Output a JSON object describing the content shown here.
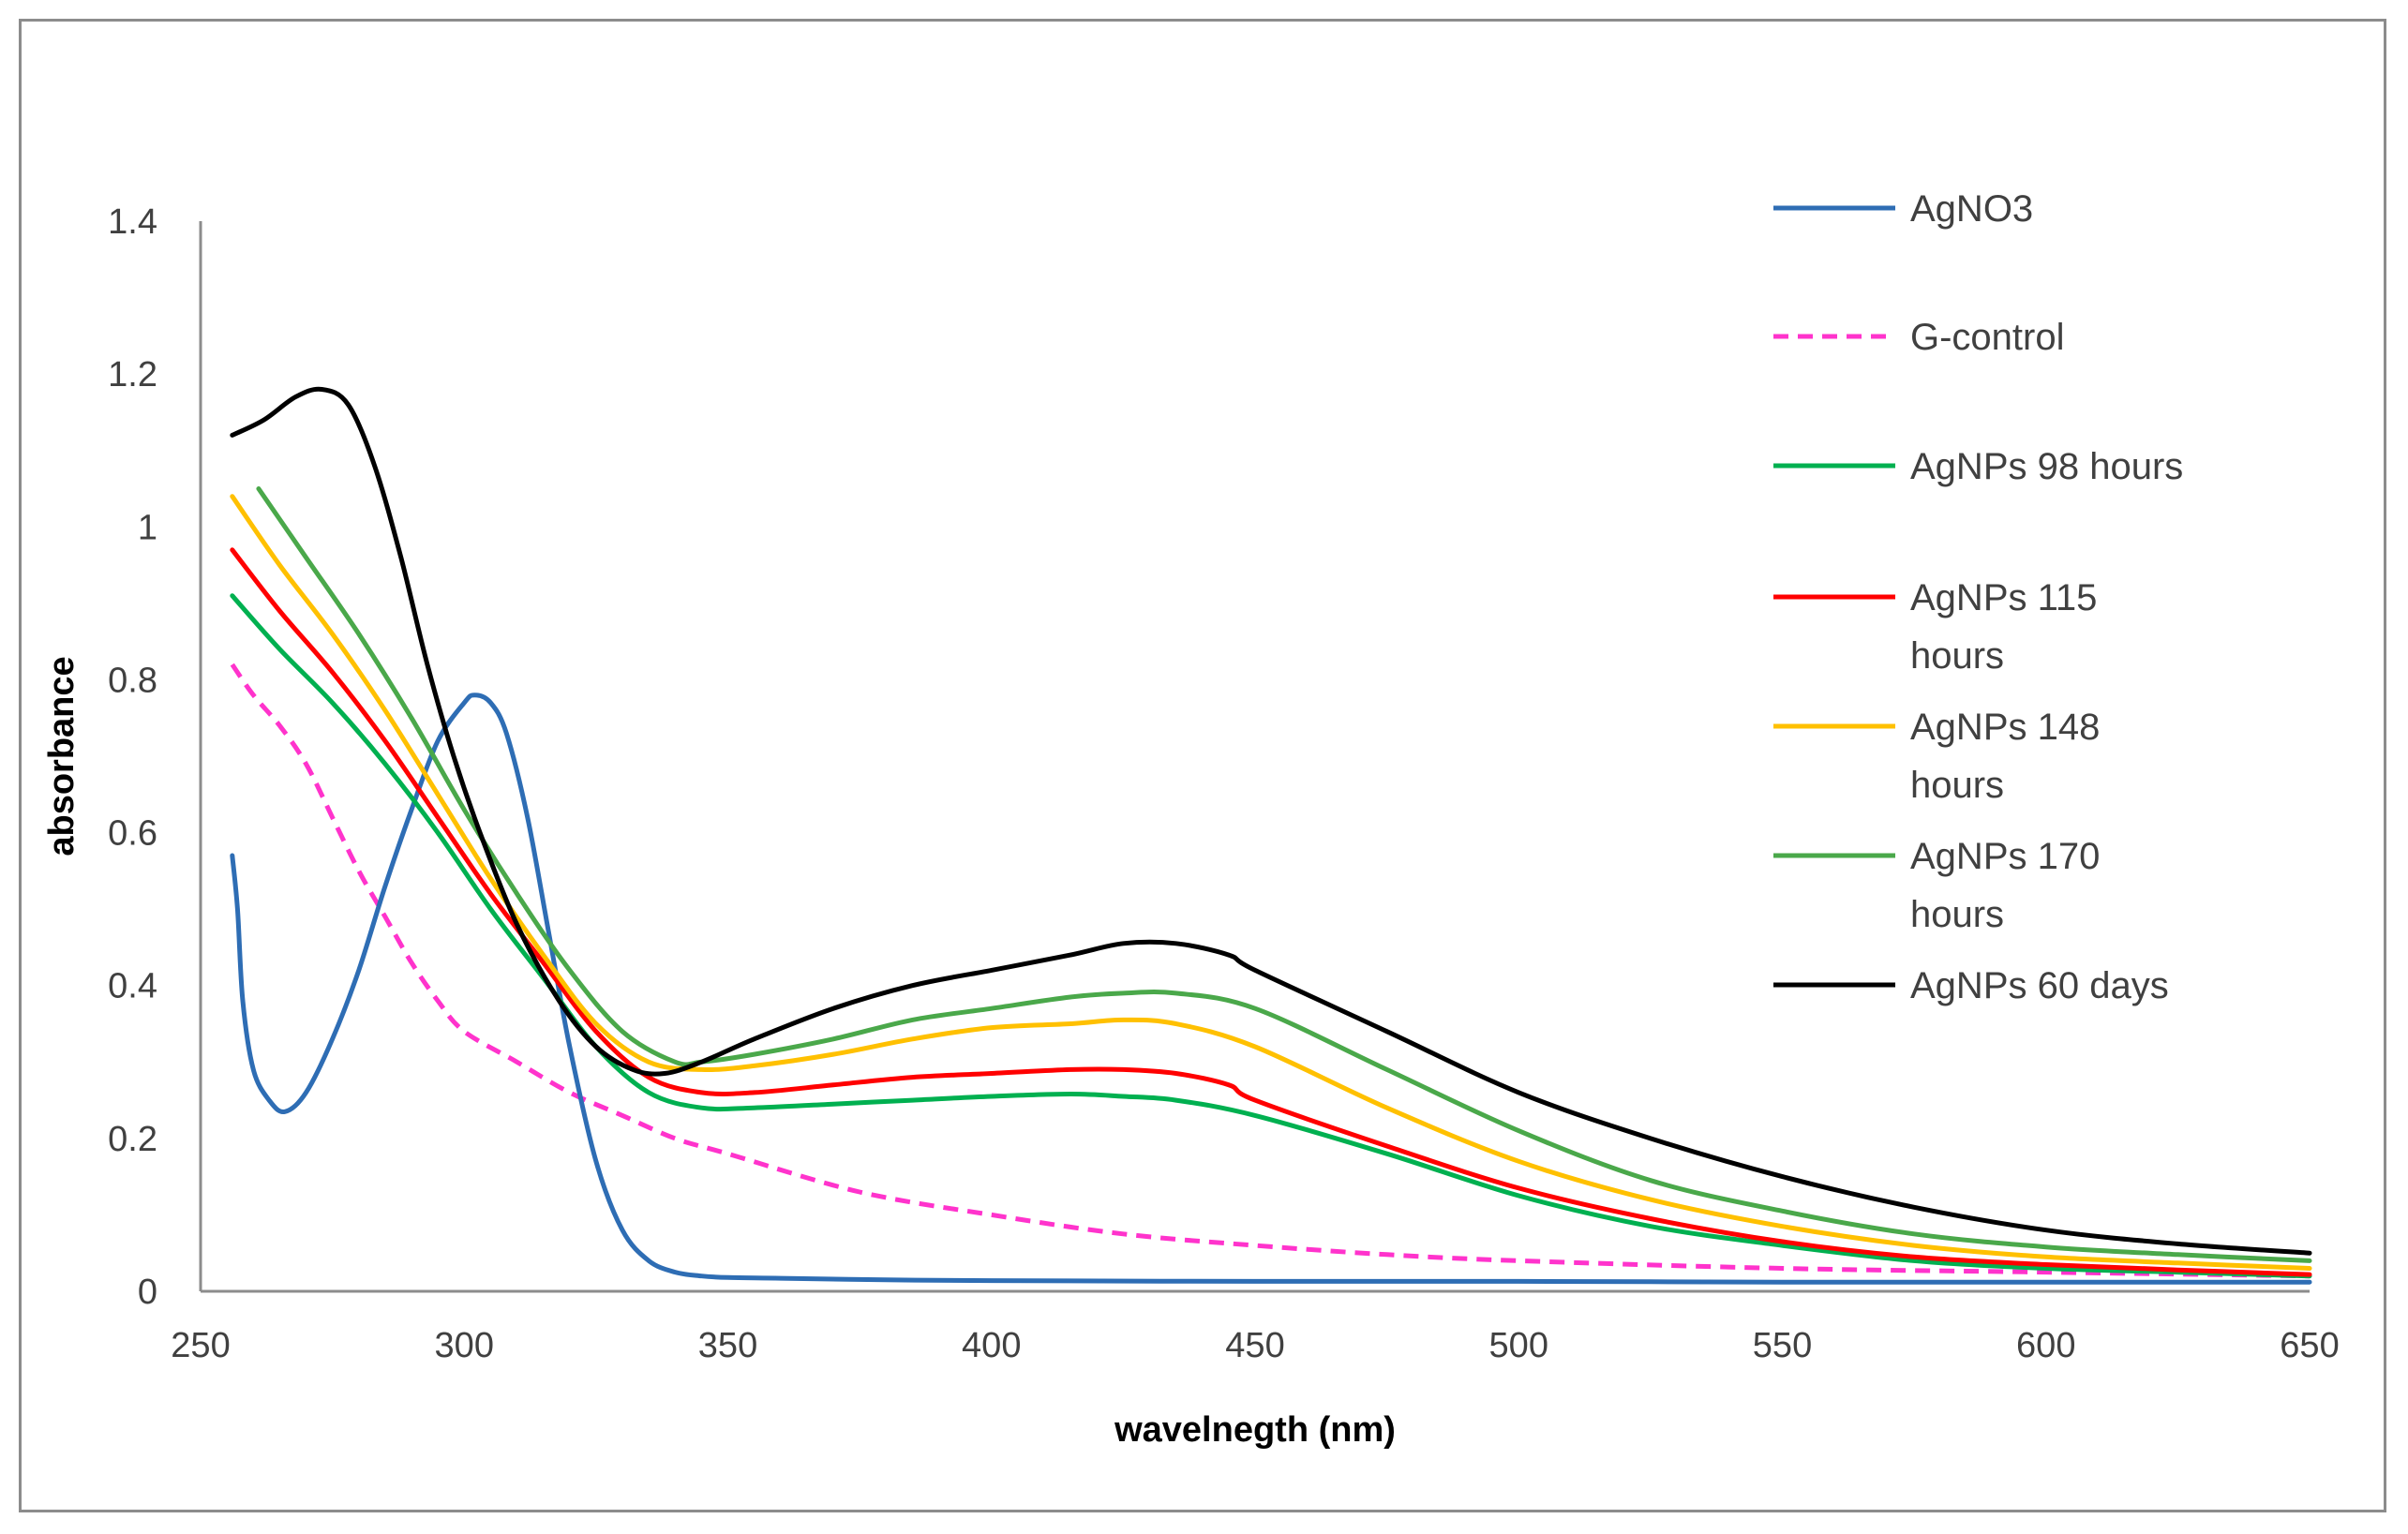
{
  "chart_data": {
    "type": "line",
    "title": "",
    "xlabel": "wavelnegth (nm)",
    "ylabel": "absorbance",
    "xlim": [
      250,
      650
    ],
    "ylim": [
      0,
      1.4
    ],
    "x_ticks": [
      "250",
      "300",
      "350",
      "400",
      "450",
      "500",
      "550",
      "600",
      "650"
    ],
    "y_ticks": [
      "0",
      "0.2",
      "0.4",
      "0.6",
      "0.8",
      "1",
      "1.2",
      "1.4"
    ],
    "grid": false,
    "legend_position": "right",
    "series": [
      {
        "name": "AgNO3",
        "color": "#2e6db4",
        "dashed": false,
        "x": [
          256,
          257,
          258,
          260,
          263,
          266,
          270,
          275,
          280,
          285,
          290,
          295,
          300,
          302,
          305,
          308,
          312,
          316,
          320,
          325,
          330,
          335,
          340,
          345,
          350,
          360,
          380,
          400,
          450,
          500,
          550,
          600,
          650
        ],
        "y": [
          0.57,
          0.5,
          0.38,
          0.29,
          0.25,
          0.235,
          0.26,
          0.33,
          0.42,
          0.53,
          0.63,
          0.72,
          0.77,
          0.78,
          0.77,
          0.73,
          0.62,
          0.47,
          0.32,
          0.17,
          0.08,
          0.04,
          0.025,
          0.02,
          0.018,
          0.017,
          0.015,
          0.014,
          0.013,
          0.013,
          0.012,
          0.012,
          0.012
        ]
      },
      {
        "name": "G-control",
        "color": "#ff33cc",
        "dashed": true,
        "x": [
          256,
          260,
          265,
          270,
          275,
          280,
          285,
          290,
          295,
          300,
          310,
          320,
          330,
          340,
          350,
          375,
          400,
          425,
          450,
          475,
          500,
          550,
          600,
          650
        ],
        "y": [
          0.82,
          0.78,
          0.74,
          0.69,
          0.62,
          0.55,
          0.49,
          0.43,
          0.38,
          0.34,
          0.3,
          0.26,
          0.23,
          0.2,
          0.18,
          0.13,
          0.1,
          0.075,
          0.06,
          0.048,
          0.04,
          0.03,
          0.025,
          0.02
        ]
      },
      {
        "name": "AgNPs 98 hours",
        "color": "#00b050",
        "dashed": false,
        "x": [
          256,
          265,
          275,
          285,
          295,
          305,
          315,
          325,
          335,
          345,
          355,
          370,
          385,
          400,
          415,
          425,
          435,
          450,
          475,
          500,
          525,
          550,
          575,
          600,
          625,
          650
        ],
        "y": [
          0.91,
          0.84,
          0.77,
          0.69,
          0.6,
          0.5,
          0.41,
          0.32,
          0.26,
          0.24,
          0.24,
          0.245,
          0.25,
          0.255,
          0.258,
          0.255,
          0.25,
          0.23,
          0.18,
          0.125,
          0.085,
          0.06,
          0.04,
          0.03,
          0.025,
          0.02
        ]
      },
      {
        "name": "AgNPs 115 hours",
        "color": "#ff0000",
        "dashed": false,
        "x": [
          256,
          265,
          275,
          285,
          295,
          305,
          315,
          325,
          335,
          345,
          355,
          370,
          385,
          400,
          415,
          425,
          435,
          445,
          450,
          475,
          500,
          525,
          550,
          575,
          600,
          625,
          650
        ],
        "y": [
          0.97,
          0.89,
          0.81,
          0.72,
          0.62,
          0.52,
          0.43,
          0.34,
          0.28,
          0.26,
          0.26,
          0.27,
          0.28,
          0.285,
          0.29,
          0.29,
          0.285,
          0.27,
          0.25,
          0.19,
          0.135,
          0.095,
          0.065,
          0.045,
          0.035,
          0.028,
          0.022
        ]
      },
      {
        "name": "AgNPs 148 hours",
        "color": "#ffc000",
        "dashed": false,
        "x": [
          256,
          265,
          275,
          285,
          295,
          305,
          315,
          325,
          335,
          345,
          355,
          370,
          385,
          400,
          415,
          425,
          435,
          450,
          475,
          500,
          525,
          550,
          575,
          600,
          625,
          650
        ],
        "y": [
          1.04,
          0.95,
          0.86,
          0.76,
          0.65,
          0.54,
          0.44,
          0.35,
          0.3,
          0.29,
          0.295,
          0.31,
          0.33,
          0.345,
          0.35,
          0.355,
          0.35,
          0.32,
          0.24,
          0.17,
          0.12,
          0.085,
          0.06,
          0.045,
          0.037,
          0.03
        ]
      },
      {
        "name": "AgNPs 170 hours",
        "color": "#4aa84a",
        "dashed": false,
        "x": [
          261,
          270,
          280,
          290,
          300,
          310,
          320,
          330,
          340,
          345,
          355,
          370,
          385,
          400,
          415,
          425,
          435,
          450,
          475,
          500,
          525,
          550,
          575,
          600,
          625,
          650
        ],
        "y": [
          1.05,
          0.96,
          0.86,
          0.75,
          0.63,
          0.52,
          0.42,
          0.34,
          0.3,
          0.3,
          0.31,
          0.33,
          0.355,
          0.37,
          0.385,
          0.39,
          0.39,
          0.37,
          0.29,
          0.21,
          0.145,
          0.105,
          0.075,
          0.058,
          0.048,
          0.04
        ]
      },
      {
        "name": "AgNPs 60 days",
        "color": "#000000",
        "dashed": false,
        "x": [
          256,
          262,
          268,
          273,
          278,
          283,
          288,
          293,
          298,
          303,
          310,
          318,
          325,
          332,
          338,
          345,
          355,
          370,
          385,
          400,
          415,
          425,
          435,
          445,
          450,
          475,
          500,
          525,
          550,
          575,
          600,
          625,
          650
        ],
        "y": [
          1.12,
          1.14,
          1.17,
          1.18,
          1.16,
          1.08,
          0.96,
          0.82,
          0.7,
          0.6,
          0.48,
          0.38,
          0.32,
          0.29,
          0.285,
          0.3,
          0.33,
          0.37,
          0.4,
          0.42,
          0.44,
          0.455,
          0.455,
          0.44,
          0.42,
          0.34,
          0.26,
          0.2,
          0.15,
          0.11,
          0.08,
          0.062,
          0.05
        ]
      }
    ]
  }
}
